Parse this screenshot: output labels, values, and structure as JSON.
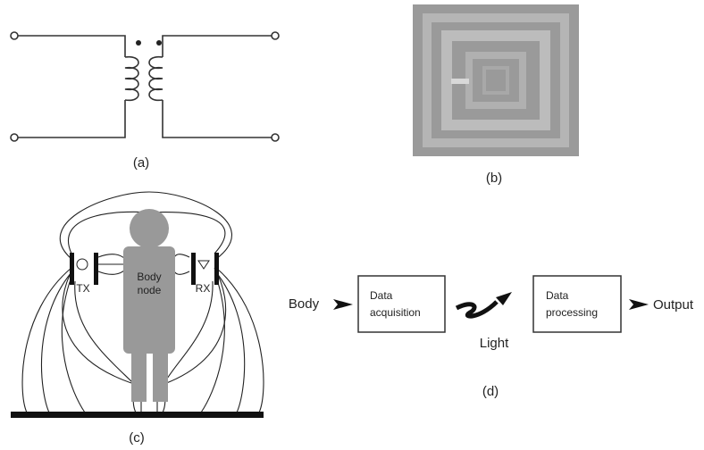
{
  "panel_a": {
    "label": "(a)"
  },
  "panel_b": {
    "label": "(b)"
  },
  "panel_c": {
    "label": "(c)",
    "tx": "TX",
    "rx": "RX",
    "body_node": [
      "Body",
      "node"
    ]
  },
  "panel_d": {
    "label": "(d)",
    "input": "Body",
    "acquisition": [
      "Data",
      "acquisition"
    ],
    "link": "Light",
    "processing": [
      "Data",
      "processing"
    ],
    "output": "Output"
  }
}
